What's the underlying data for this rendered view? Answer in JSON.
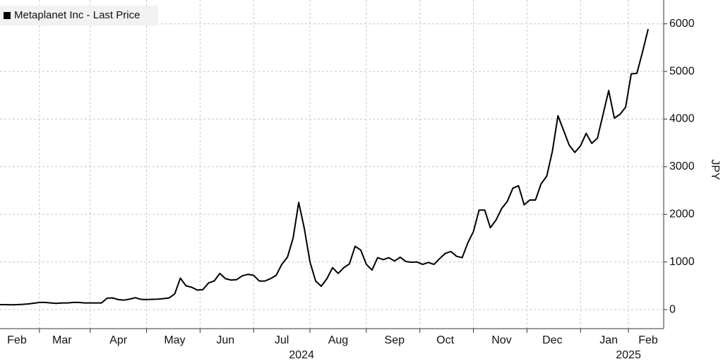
{
  "chart_data": {
    "type": "line",
    "categories": [
      null,
      null,
      null,
      "Feb",
      null,
      null,
      null,
      null,
      null,
      null,
      null,
      "Mar",
      null,
      null,
      null,
      null,
      null,
      null,
      null,
      null,
      null,
      "Apr",
      null,
      null,
      null,
      null,
      null,
      null,
      null,
      null,
      null,
      "May",
      null,
      null,
      null,
      null,
      null,
      null,
      null,
      null,
      "Jun",
      null,
      null,
      null,
      null,
      null,
      null,
      null,
      null,
      null,
      "Jul",
      null,
      null,
      null,
      null,
      null,
      null,
      null,
      null,
      null,
      "Aug",
      null,
      null,
      null,
      null,
      null,
      null,
      null,
      null,
      null,
      "Sep",
      null,
      null,
      null,
      null,
      null,
      null,
      null,
      null,
      "Oct",
      null,
      null,
      null,
      null,
      null,
      null,
      null,
      null,
      null,
      "Nov",
      null,
      null,
      null,
      null,
      null,
      null,
      null,
      null,
      "Dec",
      null,
      null,
      null,
      null,
      null,
      null,
      null,
      null,
      null,
      "Jan",
      null,
      null,
      null,
      null,
      null,
      null,
      "Feb"
    ],
    "x_groups": [
      {
        "label": "2024",
        "start": 0,
        "end": 107
      },
      {
        "label": "2025",
        "start": 108,
        "end": 115
      }
    ],
    "series": [
      {
        "name": "Metaplanet Inc - Last Price",
        "color": "#000000",
        "values": [
          105,
          105,
          100,
          105,
          110,
          120,
          135,
          150,
          150,
          140,
          130,
          140,
          140,
          150,
          150,
          140,
          140,
          140,
          140,
          240,
          245,
          210,
          200,
          220,
          250,
          215,
          210,
          215,
          220,
          230,
          245,
          330,
          660,
          500,
          470,
          410,
          420,
          560,
          600,
          760,
          650,
          620,
          630,
          710,
          740,
          720,
          600,
          600,
          650,
          720,
          950,
          1100,
          1500,
          2250,
          1700,
          1000,
          600,
          490,
          650,
          880,
          760,
          880,
          960,
          1330,
          1250,
          950,
          830,
          1090,
          1050,
          1090,
          1020,
          1100,
          1010,
          995,
          1000,
          950,
          990,
          950,
          1070,
          1180,
          1220,
          1120,
          1090,
          1400,
          1640,
          2090,
          2090,
          1720,
          1880,
          2120,
          2270,
          2550,
          2600,
          2200,
          2300,
          2300,
          2640,
          2800,
          3320,
          4070,
          3760,
          3450,
          3300,
          3440,
          3700,
          3490,
          3600,
          4100,
          4600,
          4020,
          4100,
          4250,
          4950,
          4960,
          5410,
          5890
        ]
      }
    ],
    "y_axis_label": "JPY",
    "ylim": [
      -400,
      6500
    ],
    "yticks": [
      0,
      1000,
      2000,
      3000,
      4000,
      5000,
      6000
    ],
    "grid": true,
    "legend": "top-left"
  }
}
